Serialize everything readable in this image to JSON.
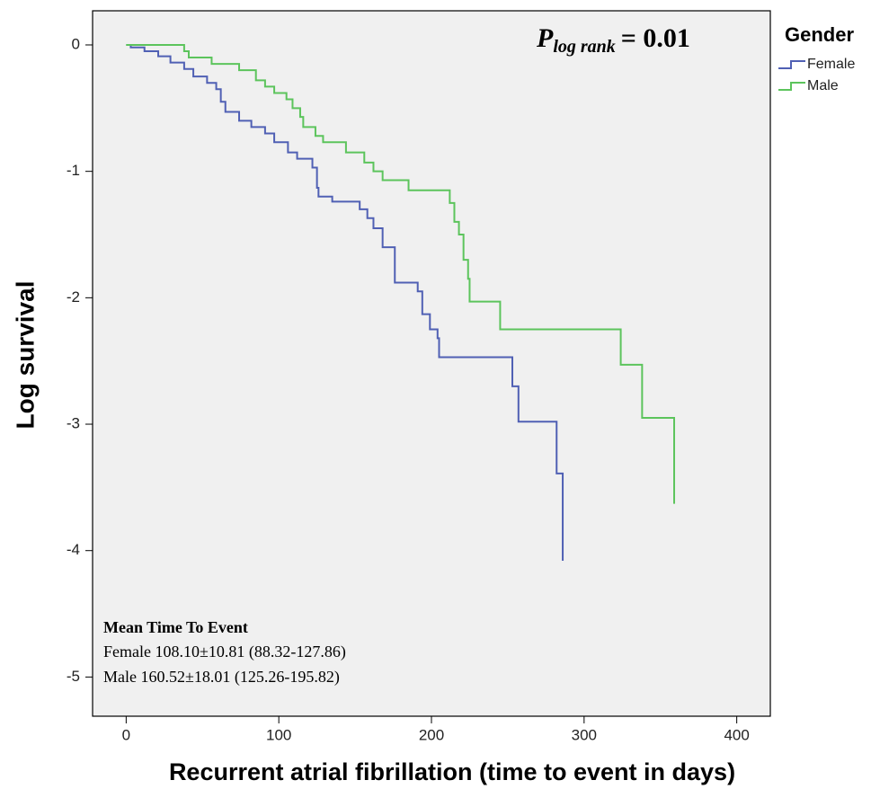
{
  "chart_data": {
    "type": "step",
    "xlabel": "Recurrent atrial fibrillation (time to event in days)",
    "ylabel": "Log survival",
    "xlim": [
      -22,
      422
    ],
    "ylim": [
      -5.31,
      0.27
    ],
    "xticks": [
      0,
      100,
      200,
      300,
      400
    ],
    "yticks": [
      0,
      -1,
      -2,
      -3,
      -4,
      -5
    ],
    "background": "#f0f0f0",
    "legend": {
      "title": "Gender",
      "position": "outside-top-right"
    },
    "annotation": {
      "symbol": "P",
      "subscript": "log rank",
      "text": "= 0.01"
    },
    "note": {
      "title": "Mean Time To Event",
      "lines": [
        "Female 108.10±10.81 (88.32-127.86)",
        "Male 160.52±18.01 (125.26-195.82)"
      ]
    },
    "series": [
      {
        "name": "Female",
        "color": "#5060b4",
        "x": [
          0,
          3,
          12,
          21,
          29,
          38,
          44,
          53,
          59,
          62,
          65,
          74,
          82,
          91,
          97,
          106,
          112,
          122,
          125,
          126,
          135,
          153,
          158,
          162,
          168,
          176,
          191,
          194,
          199,
          204,
          205,
          253,
          257,
          282,
          286
        ],
        "values": [
          0,
          -0.02,
          -0.05,
          -0.09,
          -0.14,
          -0.19,
          -0.25,
          -0.3,
          -0.35,
          -0.45,
          -0.53,
          -0.6,
          -0.65,
          -0.7,
          -0.77,
          -0.85,
          -0.9,
          -0.97,
          -1.13,
          -1.2,
          -1.24,
          -1.3,
          -1.37,
          -1.45,
          -1.6,
          -1.88,
          -1.95,
          -2.13,
          -2.25,
          -2.32,
          -2.47,
          -2.7,
          -2.98,
          -3.39,
          -4.08
        ]
      },
      {
        "name": "Male",
        "color": "#5cc45c",
        "x": [
          0,
          38,
          41,
          56,
          74,
          85,
          91,
          97,
          105,
          109,
          114,
          116,
          124,
          129,
          144,
          156,
          162,
          168,
          185,
          212,
          215,
          218,
          221,
          224,
          225,
          245,
          324,
          338,
          359
        ],
        "values": [
          0,
          -0.05,
          -0.1,
          -0.15,
          -0.2,
          -0.28,
          -0.33,
          -0.38,
          -0.43,
          -0.5,
          -0.57,
          -0.65,
          -0.72,
          -0.77,
          -0.85,
          -0.93,
          -1.0,
          -1.07,
          -1.15,
          -1.25,
          -1.4,
          -1.5,
          -1.7,
          -1.85,
          -2.03,
          -2.25,
          -2.53,
          -2.95,
          -3.63
        ]
      }
    ]
  }
}
